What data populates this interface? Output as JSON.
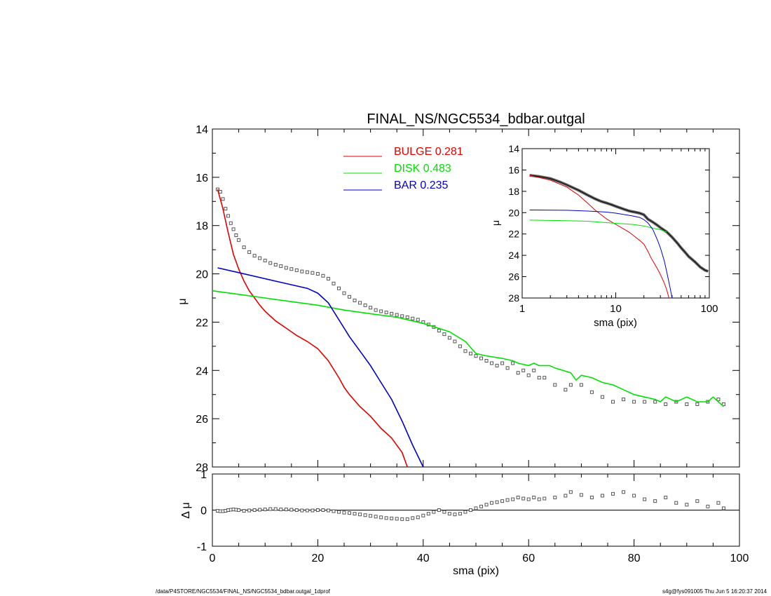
{
  "title": "FINAL_NS/NGC5534_bdbar.outgal",
  "footer": {
    "left": "/data/P4STORE/NGC5534/FINAL_NS/NGC5534_bdbar.outgal_1dprof",
    "right": "s4g@fys091005  Thu Jun  5 16:20:37 2014"
  },
  "colors": {
    "bulge": "#e00000",
    "disk": "#00e000",
    "bar": "#0000c8",
    "data": "#555555",
    "axis": "#000000"
  },
  "chart_data": [
    {
      "type": "scatter",
      "panel": "main",
      "title": "FINAL_NS/NGC5534_bdbar.outgal",
      "xlabel": "",
      "ylabel": "μ",
      "xlim": [
        0,
        100
      ],
      "ylim": [
        28,
        14
      ],
      "yticks": [
        "14",
        "16",
        "18",
        "20",
        "22",
        "24",
        "26",
        "28"
      ],
      "y_inverted": true,
      "legend_position": "top-center",
      "legend": [
        {
          "name": "BULGE",
          "value": "0.281",
          "color": "#e00000"
        },
        {
          "name": "DISK",
          "value": "0.483",
          "color": "#00e000"
        },
        {
          "name": "BAR",
          "value": "0.235",
          "color": "#0000c8"
        }
      ],
      "data_points": {
        "x": [
          1,
          1.5,
          2,
          2.5,
          3,
          3.5,
          4,
          4.5,
          5,
          6,
          7,
          8,
          9,
          10,
          11,
          12,
          13,
          14,
          15,
          16,
          17,
          18,
          19,
          20,
          21,
          22,
          23,
          24,
          25,
          26,
          27,
          28,
          29,
          30,
          31,
          32,
          33,
          34,
          35,
          36,
          37,
          38,
          39,
          40,
          41,
          42,
          43,
          44,
          45,
          46,
          47,
          48,
          49,
          50,
          51,
          52,
          53,
          54,
          55,
          56,
          57,
          58,
          59,
          60,
          61,
          62,
          63,
          65,
          67,
          68,
          70,
          72,
          74,
          76,
          78,
          80,
          82,
          84,
          86,
          88,
          90,
          92,
          94,
          96,
          97
        ],
        "y": [
          16.5,
          16.6,
          16.9,
          17.3,
          17.6,
          17.9,
          18.15,
          18.4,
          18.6,
          18.9,
          19.1,
          19.25,
          19.35,
          19.45,
          19.55,
          19.62,
          19.68,
          19.75,
          19.8,
          19.85,
          19.9,
          19.93,
          19.96,
          20.0,
          20.08,
          20.2,
          20.4,
          20.6,
          20.8,
          20.95,
          21.1,
          21.2,
          21.3,
          21.4,
          21.5,
          21.55,
          21.6,
          21.65,
          21.7,
          21.75,
          21.8,
          21.85,
          21.9,
          22.0,
          22.1,
          22.2,
          22.35,
          22.5,
          22.65,
          22.8,
          23.0,
          23.2,
          23.3,
          23.4,
          23.5,
          23.6,
          23.7,
          23.8,
          23.7,
          23.9,
          23.7,
          24.1,
          24.0,
          24.2,
          24.0,
          24.3,
          24.3,
          24.6,
          24.8,
          24.6,
          24.6,
          24.9,
          25.1,
          25.3,
          25.2,
          25.3,
          25.3,
          25.3,
          25.4,
          25.3,
          25.4,
          25.4,
          25.3,
          25.2,
          25.4
        ]
      },
      "series": [
        {
          "name": "BULGE",
          "color": "#e00000",
          "x": [
            1,
            2,
            3,
            4,
            5,
            6,
            7,
            8,
            9,
            10,
            12,
            14,
            16,
            18,
            20,
            22,
            24,
            25,
            26,
            28,
            30,
            32,
            34,
            36,
            37
          ],
          "y": [
            16.5,
            17.3,
            18.3,
            19.2,
            19.8,
            20.3,
            20.7,
            21.0,
            21.3,
            21.55,
            21.95,
            22.25,
            22.55,
            22.8,
            23.1,
            23.6,
            24.3,
            24.7,
            25.0,
            25.5,
            25.9,
            26.4,
            26.8,
            27.4,
            28.0
          ]
        },
        {
          "name": "DISK",
          "color": "#00e000",
          "x": [
            0,
            5,
            10,
            15,
            20,
            25,
            30,
            35,
            40,
            45,
            48,
            50,
            52,
            55,
            57,
            58,
            60,
            61,
            62,
            64,
            65,
            68,
            69,
            70,
            72,
            74,
            76,
            78,
            80,
            82,
            84,
            85,
            86,
            88,
            90,
            92,
            94,
            95,
            96,
            97
          ],
          "y": [
            20.7,
            20.85,
            21.0,
            21.15,
            21.3,
            21.5,
            21.65,
            21.8,
            22.05,
            22.4,
            22.8,
            23.3,
            23.4,
            23.5,
            23.6,
            23.7,
            23.8,
            23.7,
            23.8,
            23.8,
            23.9,
            24.1,
            24.4,
            24.2,
            24.3,
            24.5,
            24.6,
            24.8,
            25.0,
            25.1,
            25.2,
            25.3,
            25.1,
            25.3,
            25.1,
            25.3,
            25.3,
            25.1,
            25.3,
            25.5
          ]
        },
        {
          "name": "BAR",
          "color": "#0000c8",
          "x": [
            1,
            5,
            10,
            15,
            18,
            20,
            22,
            24,
            26,
            28,
            30,
            32,
            34,
            36,
            38,
            40
          ],
          "y": [
            19.75,
            19.95,
            20.2,
            20.45,
            20.6,
            20.8,
            21.2,
            21.9,
            22.6,
            23.2,
            23.8,
            24.5,
            25.2,
            26.1,
            27.1,
            28.0
          ]
        }
      ]
    },
    {
      "type": "line",
      "panel": "inset",
      "xlabel": "sma (pix)",
      "ylabel": "μ",
      "x_scale": "log",
      "xlim": [
        1,
        100
      ],
      "ylim": [
        28,
        14
      ],
      "xticks": [
        "1",
        "10",
        "100"
      ],
      "yticks": [
        "14",
        "16",
        "18",
        "20",
        "22",
        "24",
        "26",
        "28"
      ],
      "y_inverted": true,
      "series": [
        {
          "name": "data",
          "color": "#000000",
          "x": [
            1.2,
            1.5,
            2,
            2.5,
            3,
            4,
            5,
            6,
            7,
            8,
            9,
            10,
            12,
            14,
            16,
            18,
            20,
            22,
            24,
            26,
            28,
            30,
            35,
            40,
            45,
            50,
            55,
            60,
            70,
            80,
            90,
            97
          ],
          "y": [
            16.5,
            16.6,
            16.8,
            17.1,
            17.4,
            17.9,
            18.35,
            18.7,
            18.95,
            19.1,
            19.25,
            19.4,
            19.65,
            19.85,
            19.95,
            20.05,
            20.2,
            20.6,
            20.8,
            21.0,
            21.2,
            21.4,
            21.8,
            22.3,
            22.8,
            23.3,
            23.7,
            24.1,
            24.6,
            25.1,
            25.4,
            25.5
          ]
        },
        {
          "name": "BULGE",
          "color": "#e00000",
          "x": [
            1.2,
            2,
            3,
            4,
            5,
            6,
            8,
            10,
            12,
            14,
            16,
            18,
            20,
            22,
            24,
            26,
            28,
            30,
            33,
            35,
            37
          ],
          "y": [
            16.5,
            16.95,
            17.6,
            18.35,
            19.1,
            19.75,
            20.6,
            21.1,
            21.5,
            21.85,
            22.25,
            22.6,
            22.95,
            23.6,
            24.3,
            24.8,
            25.3,
            25.8,
            26.6,
            27.2,
            28.0
          ]
        },
        {
          "name": "DISK",
          "color": "#00e000",
          "x": [
            1.2,
            3,
            5,
            10,
            15,
            20,
            25,
            30,
            35
          ],
          "y": [
            20.7,
            20.75,
            20.8,
            21.0,
            21.1,
            21.25,
            21.45,
            21.6,
            21.8
          ]
        },
        {
          "name": "BAR",
          "color": "#0000c8",
          "x": [
            1.2,
            3,
            5,
            8,
            10,
            15,
            18,
            20,
            22,
            25,
            28,
            30,
            33,
            35,
            38,
            40
          ],
          "y": [
            19.75,
            19.78,
            19.85,
            19.95,
            20.05,
            20.3,
            20.45,
            20.65,
            20.95,
            21.6,
            22.6,
            23.3,
            24.5,
            25.5,
            27.0,
            28.0
          ]
        }
      ]
    },
    {
      "type": "scatter",
      "panel": "residual",
      "xlabel": "sma (pix)",
      "ylabel": "Δ μ",
      "xlim": [
        0,
        100
      ],
      "ylim": [
        -1,
        1
      ],
      "xticks": [
        "0",
        "20",
        "40",
        "60",
        "80",
        "100"
      ],
      "yticks": [
        "1",
        "0",
        "-1"
      ],
      "zero_line": true,
      "points": {
        "x": [
          1,
          1.5,
          2,
          2.5,
          3,
          3.5,
          4,
          4.5,
          5,
          6,
          7,
          8,
          9,
          10,
          11,
          12,
          13,
          14,
          15,
          16,
          17,
          18,
          19,
          20,
          21,
          22,
          23,
          24,
          25,
          26,
          27,
          28,
          29,
          30,
          31,
          32,
          33,
          34,
          35,
          36,
          37,
          38,
          39,
          40,
          41,
          42,
          43,
          44,
          45,
          46,
          47,
          48,
          49,
          50,
          51,
          52,
          53,
          54,
          55,
          56,
          57,
          58,
          59,
          60,
          61,
          62,
          63,
          65,
          67,
          68,
          70,
          72,
          74,
          76,
          78,
          80,
          82,
          84,
          86,
          88,
          90,
          92,
          94,
          96,
          97
        ],
        "y": [
          -0.02,
          -0.03,
          -0.03,
          -0.02,
          0,
          0.01,
          0.02,
          0.01,
          0,
          -0.02,
          -0.01,
          0,
          0.01,
          0.02,
          0.03,
          0.03,
          0.02,
          0.02,
          0.01,
          0,
          -0.01,
          -0.01,
          -0.01,
          0,
          0,
          -0.01,
          -0.03,
          -0.05,
          -0.07,
          -0.08,
          -0.1,
          -0.12,
          -0.14,
          -0.16,
          -0.18,
          -0.2,
          -0.22,
          -0.23,
          -0.24,
          -0.25,
          -0.25,
          -0.22,
          -0.2,
          -0.15,
          -0.1,
          -0.05,
          0,
          -0.05,
          -0.1,
          -0.12,
          -0.1,
          -0.05,
          0,
          0.05,
          0.1,
          0.15,
          0.2,
          0.22,
          0.25,
          0.28,
          0.3,
          0.35,
          0.32,
          0.3,
          0.35,
          0.3,
          0.32,
          0.35,
          0.4,
          0.5,
          0.42,
          0.35,
          0.4,
          0.45,
          0.5,
          0.4,
          0.3,
          0.25,
          0.35,
          0.2,
          0.15,
          0.25,
          0.1,
          0.2,
          0.05
        ]
      }
    }
  ]
}
